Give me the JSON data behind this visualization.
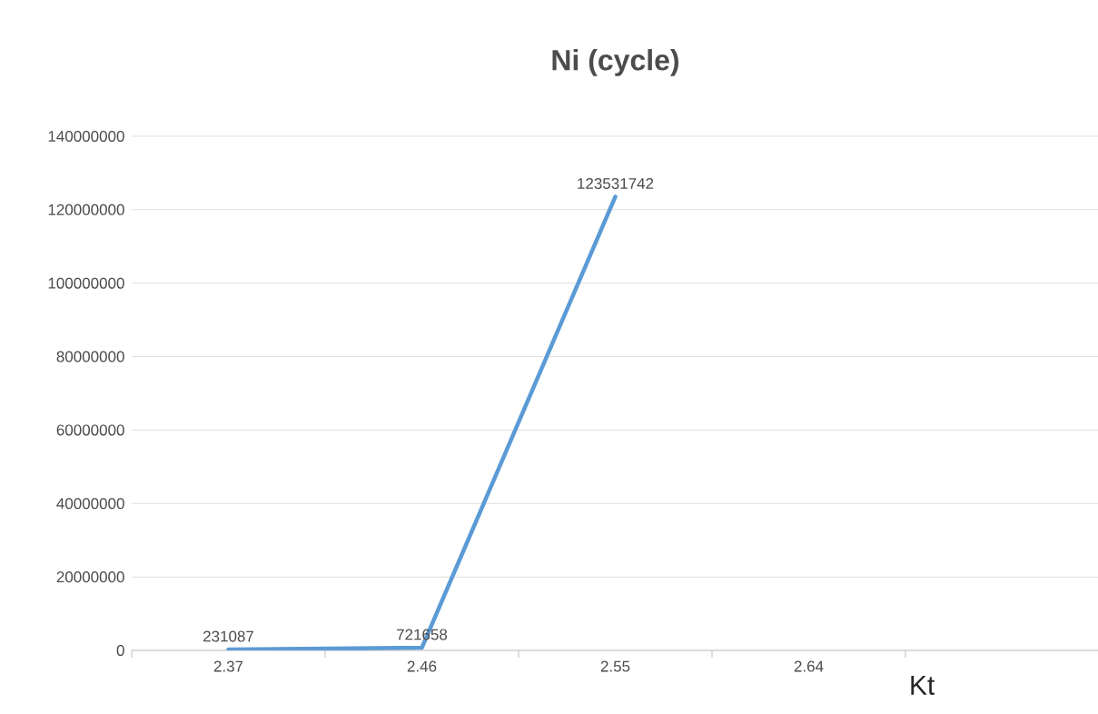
{
  "chart_data": {
    "type": "line",
    "title": "Ni (cycle)",
    "xlabel": "Kt",
    "categories": [
      "2.37",
      "2.46",
      "2.55",
      "2.64",
      null
    ],
    "values": [
      231087,
      721658,
      123531742,
      null,
      null
    ],
    "color": "#5b9bd5",
    "ylim": [
      0,
      140000000
    ],
    "yticks": [
      0,
      20000000,
      40000000,
      60000000,
      80000000,
      100000000,
      120000000,
      140000000
    ],
    "grid": "y",
    "data_labels": true,
    "marker": "none"
  }
}
